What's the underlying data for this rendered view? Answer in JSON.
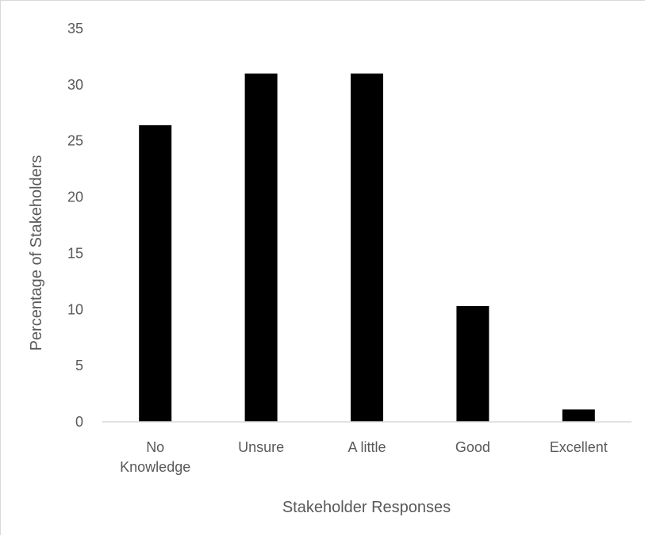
{
  "chart_data": {
    "type": "bar",
    "title": "",
    "xlabel": "Stakeholder Responses",
    "ylabel": "Percentage of  Stakeholders",
    "categories": [
      [
        "No",
        "Knowledge"
      ],
      [
        "Unsure"
      ],
      [
        "A little"
      ],
      [
        "Good"
      ],
      [
        "Excellent"
      ]
    ],
    "values": [
      26.4,
      31.0,
      31.0,
      10.3,
      1.1
    ],
    "ylim": [
      0,
      35
    ],
    "yticks": [
      0,
      5,
      10,
      15,
      20,
      25,
      30,
      35
    ],
    "grid": false,
    "legend": "none",
    "colors": {
      "bar": "#000000",
      "axis": "#d9d9d9",
      "text": "#595959"
    }
  }
}
